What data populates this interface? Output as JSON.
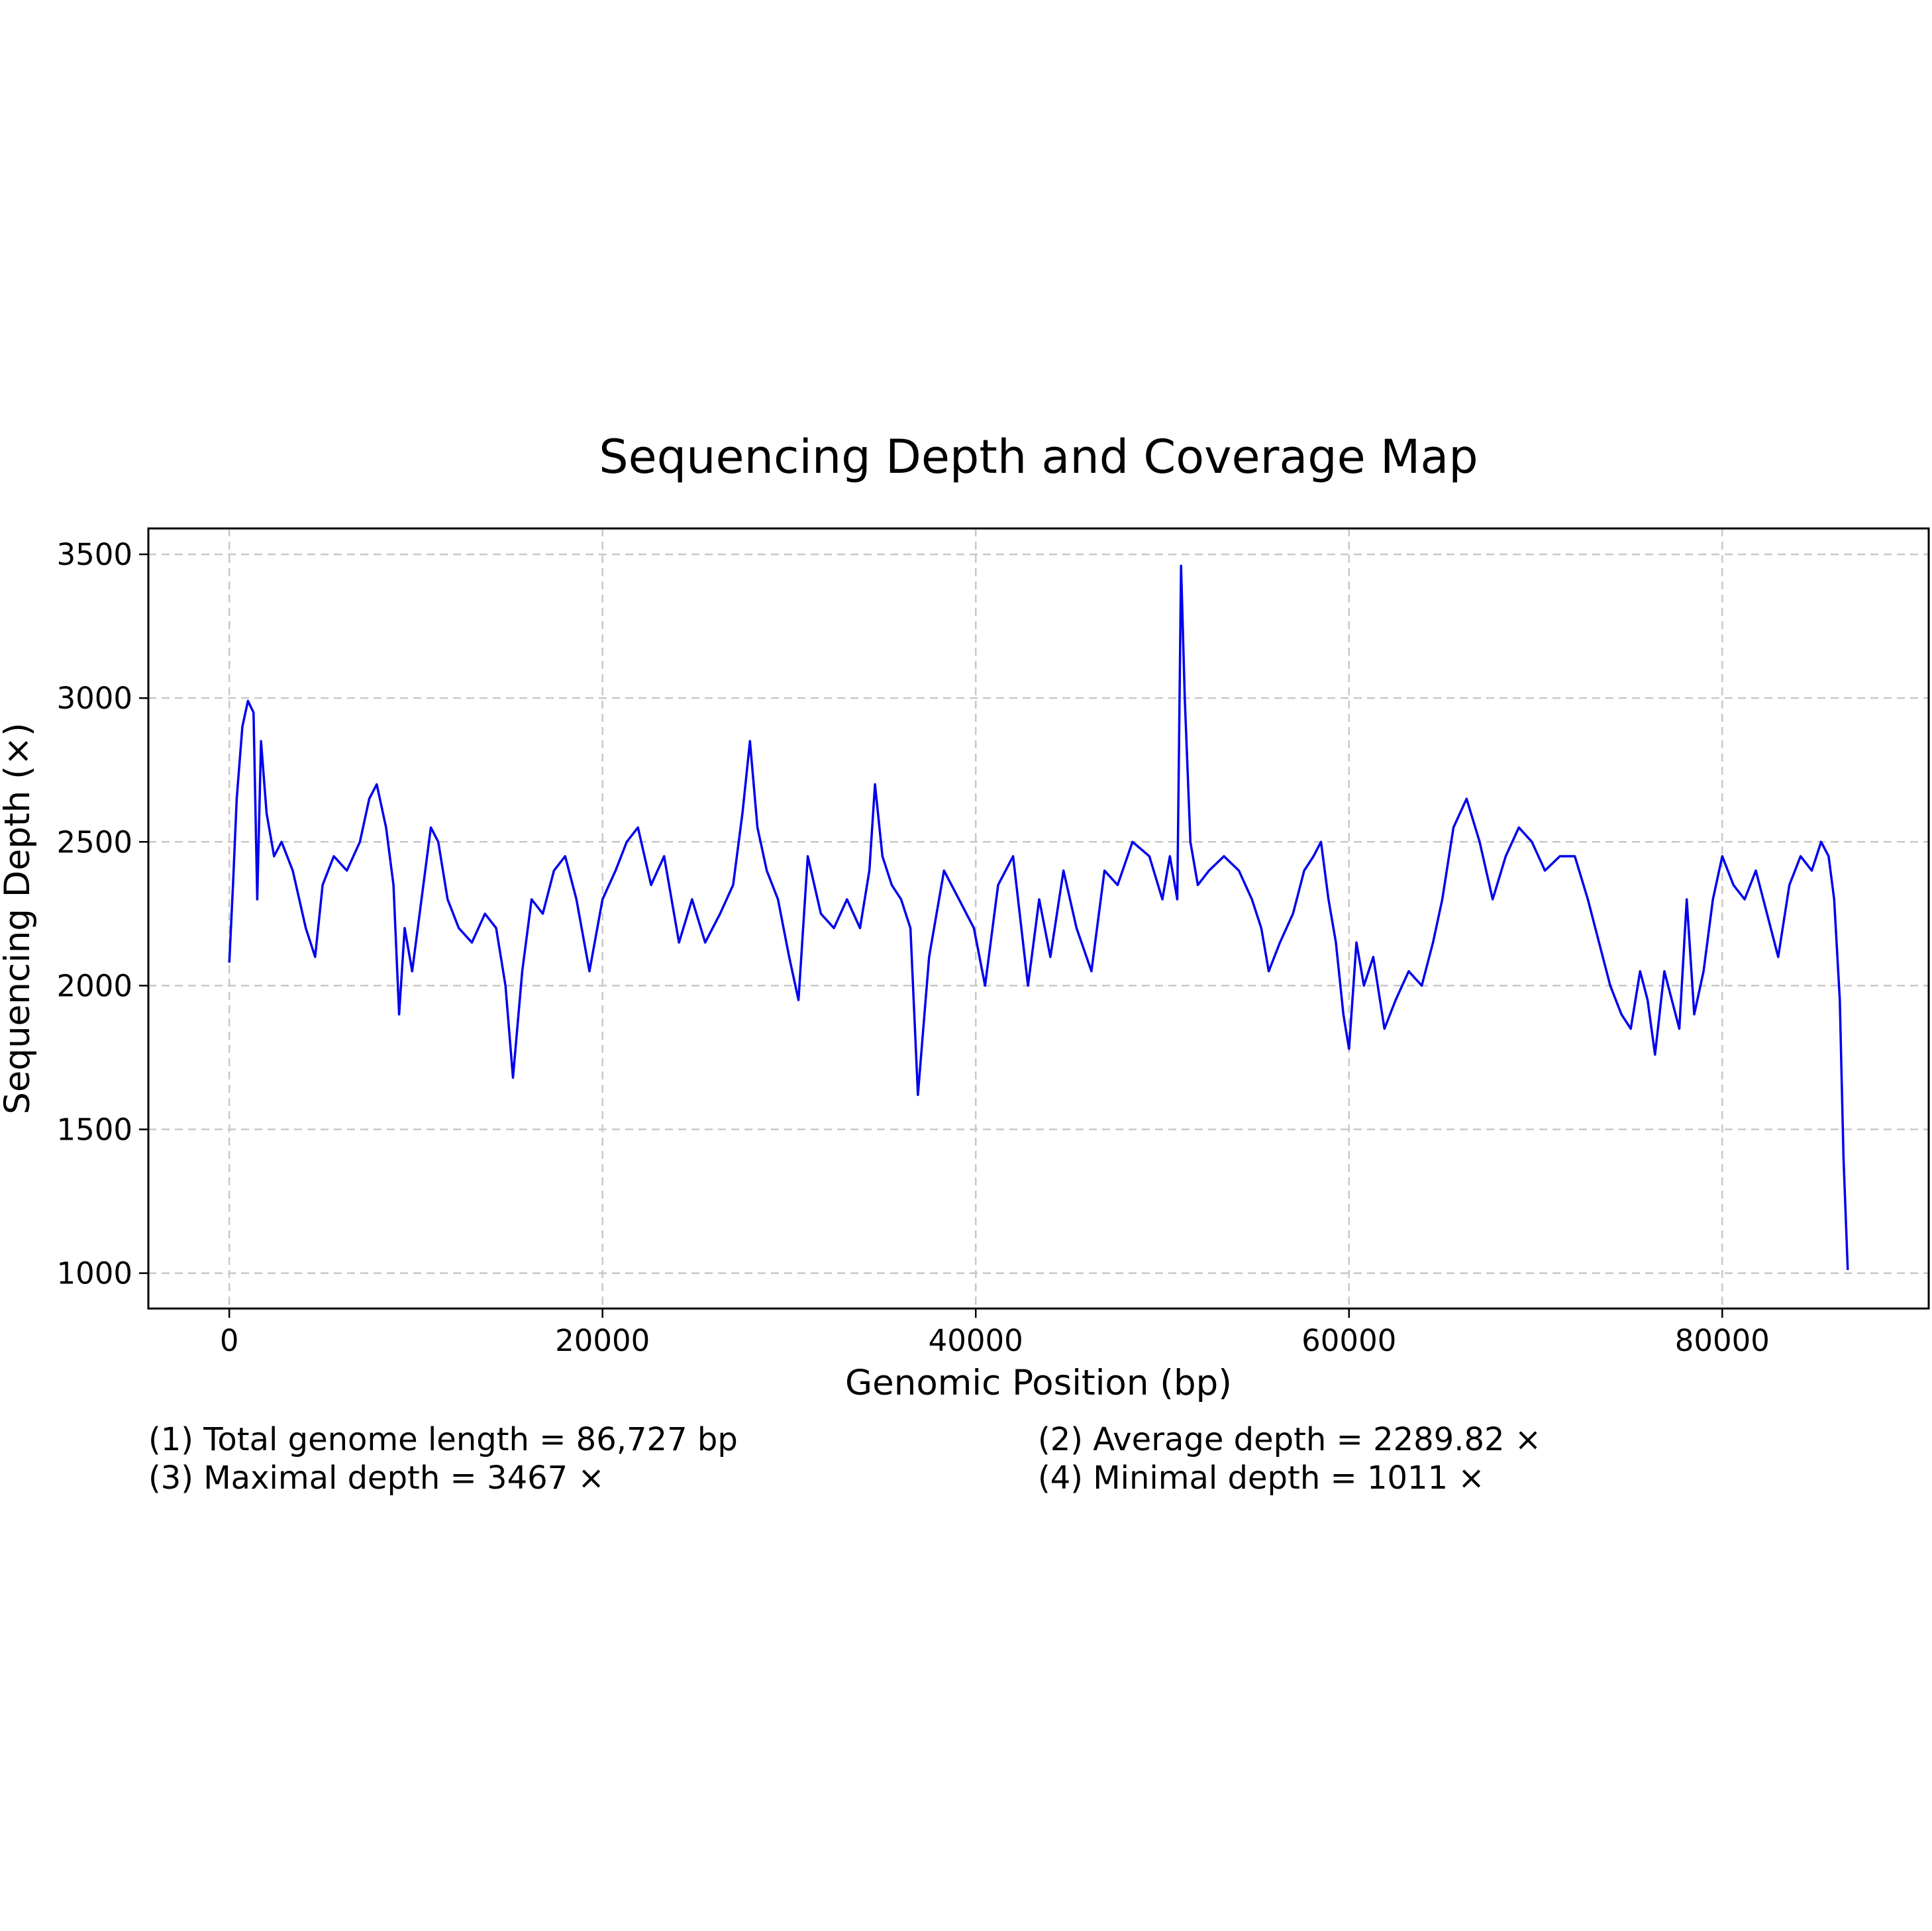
{
  "chart_data": {
    "type": "line",
    "title": "Sequencing Depth and Coverage Map",
    "xlabel": "Genomic Position (bp)",
    "ylabel": "Sequencing Depth (×)",
    "xlim": [
      -4336,
      91063
    ],
    "ylim": [
      877,
      3590
    ],
    "xticks": [
      0,
      20000,
      40000,
      60000,
      80000
    ],
    "yticks": [
      1000,
      1500,
      2000,
      2500,
      3000,
      3500
    ],
    "grid": true,
    "line_color": "#0000ee",
    "series": [
      {
        "x": [
          0,
          200,
          400,
          700,
          1000,
          1300,
          1500,
          1700,
          2000,
          2400,
          2800,
          3400,
          4100,
          4600,
          5000,
          5600,
          6300,
          7000,
          7500,
          7900,
          8400,
          8800,
          9100,
          9400,
          9800,
          10300,
          10800,
          11200,
          11700,
          12300,
          13000,
          13700,
          14300,
          14800,
          15200,
          15700,
          16200,
          16800,
          17400,
          18000,
          18600,
          19300,
          20000,
          20700,
          21300,
          21900,
          22600,
          23300,
          24100,
          24800,
          25500,
          26300,
          27000,
          27500,
          27900,
          28300,
          28800,
          29400,
          30000,
          30500,
          31000,
          31700,
          32400,
          33100,
          33800,
          34300,
          34600,
          35000,
          35500,
          36000,
          36500,
          36900,
          37500,
          38300,
          39100,
          39900,
          40500,
          41200,
          42000,
          42800,
          43400,
          44000,
          44700,
          45400,
          46200,
          46900,
          47600,
          48400,
          49300,
          50000,
          50400,
          50800,
          51000,
          51200,
          51500,
          51900,
          52500,
          53300,
          54100,
          54800,
          55300,
          55700,
          56300,
          57000,
          57600,
          58100,
          58500,
          58900,
          59300,
          59700,
          60000,
          60400,
          60800,
          61300,
          61900,
          62500,
          63200,
          63900,
          64500,
          65000,
          65600,
          66300,
          67000,
          67700,
          68400,
          69100,
          69800,
          70500,
          71300,
          72100,
          72800,
          73400,
          74000,
          74600,
          75100,
          75600,
          76000,
          76400,
          76900,
          77300,
          77700,
          78100,
          78500,
          79000,
          79500,
          80000,
          80600,
          81200,
          81800,
          82400,
          83000,
          83600,
          84200,
          84800,
          85300,
          85700,
          86000,
          86300,
          86500,
          86727
        ],
        "y": [
          2080,
          2350,
          2650,
          2900,
          2990,
          2950,
          2300,
          2850,
          2600,
          2450,
          2500,
          2400,
          2200,
          2100,
          2350,
          2450,
          2400,
          2500,
          2650,
          2700,
          2550,
          2350,
          1900,
          2200,
          2050,
          2300,
          2550,
          2500,
          2300,
          2200,
          2150,
          2250,
          2200,
          2000,
          1680,
          2050,
          2300,
          2250,
          2400,
          2450,
          2300,
          2050,
          2300,
          2400,
          2500,
          2550,
          2350,
          2450,
          2150,
          2300,
          2150,
          2250,
          2350,
          2600,
          2850,
          2550,
          2400,
          2300,
          2100,
          1950,
          2450,
          2250,
          2200,
          2300,
          2200,
          2400,
          2700,
          2450,
          2350,
          2300,
          2200,
          1620,
          2100,
          2400,
          2300,
          2200,
          2000,
          2350,
          2450,
          2000,
          2300,
          2100,
          2400,
          2200,
          2050,
          2400,
          2350,
          2500,
          2450,
          2300,
          2450,
          2300,
          3460,
          3000,
          2500,
          2350,
          2400,
          2450,
          2400,
          2300,
          2200,
          2050,
          2150,
          2250,
          2400,
          2450,
          2500,
          2300,
          2150,
          1900,
          1780,
          2150,
          2000,
          2100,
          1850,
          1950,
          2050,
          2000,
          2150,
          2300,
          2550,
          2650,
          2500,
          2300,
          2450,
          2550,
          2500,
          2400,
          2450,
          2450,
          2300,
          2150,
          2000,
          1900,
          1850,
          2050,
          1950,
          1760,
          2050,
          1950,
          1850,
          2300,
          1900,
          2050,
          2300,
          2450,
          2350,
          2300,
          2400,
          2250,
          2100,
          2350,
          2450,
          2400,
          2500,
          2450,
          2300,
          1950,
          1400,
          1011
        ]
      }
    ]
  },
  "stats": {
    "total_length": "(1) Total genome length = 86,727 bp",
    "average_depth": "(2) Average depth = 2289.82 ×",
    "max_depth": "(3) Maximal depth = 3467 ×",
    "min_depth": "(4) Minimal depth = 1011 ×"
  }
}
